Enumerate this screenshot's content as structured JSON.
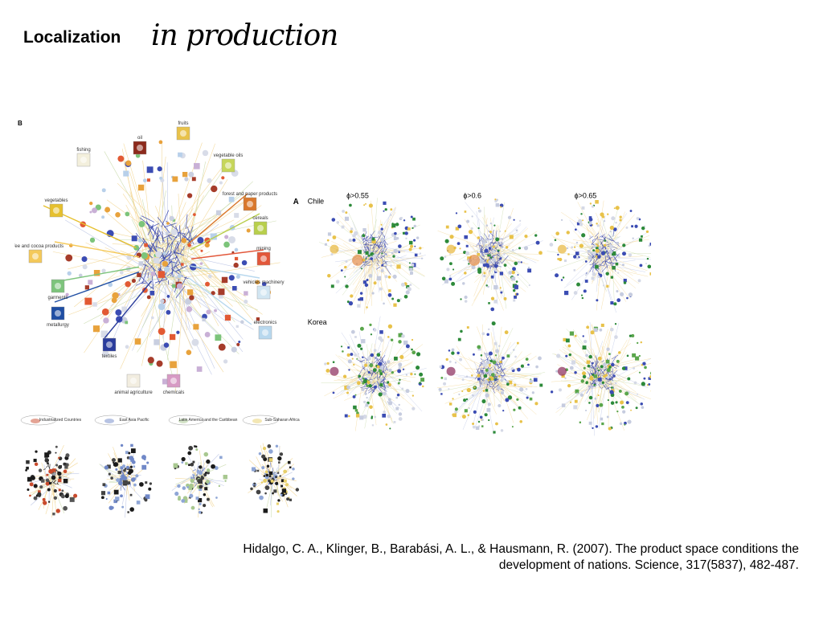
{
  "slide": {
    "title": "Localization",
    "title_script": "in production",
    "citation_line1": "Hidalgo, C. A., Klinger, B., Barabási, A. L., & Hausmann, R. (2007). The product space conditions the",
    "citation_line2": "development of nations. Science, 317(5837), 482-487."
  },
  "panel_b": {
    "letter": "B",
    "categories": [
      {
        "label": "fruits",
        "color": "#e8c24a",
        "icon": "fruit-icon"
      },
      {
        "label": "oil",
        "color": "#8c2a1c",
        "icon": "oil-icon"
      },
      {
        "label": "vegetable oils",
        "color": "#c6d65a",
        "icon": "vegetable-oil-icon"
      },
      {
        "label": "fishing",
        "color": "#f3efdc",
        "icon": "fish-icon"
      },
      {
        "label": "forest and paper products",
        "color": "#d9782c",
        "icon": "forest-icon"
      },
      {
        "label": "cereals",
        "color": "#b8cf4c",
        "icon": "cereal-icon"
      },
      {
        "label": "vegetables",
        "color": "#e6c02e",
        "icon": "vegetable-icon"
      },
      {
        "label": "coffee and cocoa products",
        "color": "#f4c95a",
        "icon": "coffee-icon"
      },
      {
        "label": "mining",
        "color": "#e2573a",
        "icon": "mining-icon"
      },
      {
        "label": "vehicles machinery",
        "color": "#d2e6f2",
        "icon": "vehicle-icon"
      },
      {
        "label": "garments",
        "color": "#7dc47c",
        "icon": "garment-icon"
      },
      {
        "label": "metallurgy",
        "color": "#1f4ea3",
        "icon": "metallurgy-icon"
      },
      {
        "label": "electronics",
        "color": "#b8d8ee",
        "icon": "electronics-icon"
      },
      {
        "label": "textiles",
        "color": "#2a3c9c",
        "icon": "textile-icon"
      },
      {
        "label": "animal agriculture",
        "color": "#f2ede0",
        "icon": "cow-icon"
      },
      {
        "label": "chemicals",
        "color": "#d79ac4",
        "icon": "chemicals-icon"
      }
    ],
    "regions": [
      {
        "label": "Industrialized Countries"
      },
      {
        "label": "East Asia Pacific"
      },
      {
        "label": "Latin America and the Caribbean"
      },
      {
        "label": "Sub-Saharan Africa"
      }
    ]
  },
  "panel_a": {
    "letter": "A",
    "thresholds": [
      "ϕ>0.55",
      "ϕ>0.6",
      "ϕ>0.65"
    ],
    "countries": [
      "Chile",
      "Korea"
    ]
  }
}
